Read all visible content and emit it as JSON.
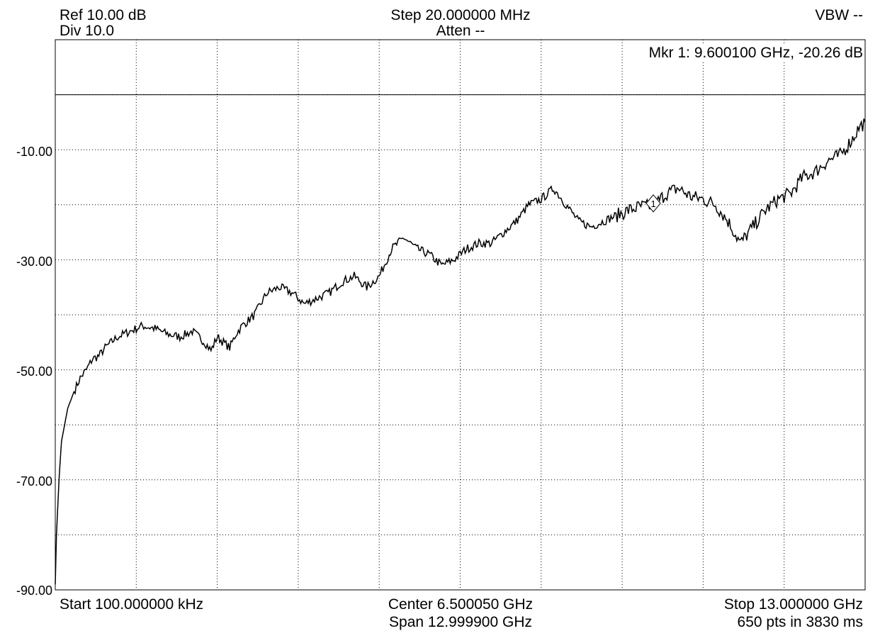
{
  "header": {
    "ref": "Ref 10.00 dB",
    "div": "Div 10.0",
    "step": "Step 20.000000 MHz",
    "atten": "Atten --",
    "vbw": "VBW --"
  },
  "marker": {
    "readout": "Mkr 1: 9.600100 GHz, -20.26 dB",
    "label": "1",
    "x_ghz": 9.6001,
    "y_db": -20.26
  },
  "footer": {
    "start": "Start 100.000000 kHz",
    "center": "Center 6.500050 GHz",
    "span": "Span 12.999900 GHz",
    "stop": "Stop 13.000000 GHz",
    "sweep": "650 pts in 3830 ms"
  },
  "colors": {
    "trace": "#000000",
    "grid": "#000000",
    "background": "#ffffff"
  },
  "chart_data": {
    "type": "line",
    "title": "",
    "xlabel": "",
    "ylabel": "",
    "xlim": [
      0.0001,
      13.0
    ],
    "ylim": [
      -90,
      10
    ],
    "y_ticks": [
      -10,
      -30,
      -50,
      -70,
      -90
    ],
    "y_tick_labels": [
      "-10.00",
      "-30.00",
      "-50.00",
      "-70.00",
      "-90.00"
    ],
    "reference_level": 0,
    "grid": true,
    "series": [
      {
        "x": [
          0.0001,
          0.02,
          0.06,
          0.1,
          0.15,
          0.2,
          0.3,
          0.4,
          0.5,
          0.6,
          0.7,
          0.8,
          0.9,
          1.0,
          1.2,
          1.4,
          1.6,
          1.8,
          2.0,
          2.2,
          2.4,
          2.5,
          2.6,
          2.7,
          2.8,
          2.9,
          3.0,
          3.2,
          3.4,
          3.6,
          3.8,
          4.0,
          4.2,
          4.4,
          4.6,
          4.8,
          5.0,
          5.2,
          5.4,
          5.6,
          5.8,
          6.0,
          6.2,
          6.4,
          6.6,
          6.8,
          7.0,
          7.2,
          7.4,
          7.6,
          7.8,
          8.0,
          8.2,
          8.4,
          8.6,
          8.8,
          9.0,
          9.2,
          9.4,
          9.6,
          9.8,
          10.0,
          10.2,
          10.4,
          10.6,
          10.8,
          11.0,
          11.2,
          11.4,
          11.6,
          11.8,
          12.0,
          12.2,
          12.4,
          12.6,
          12.8,
          12.9,
          13.0
        ],
        "y": [
          -89,
          -80,
          -70,
          -63,
          -60,
          -57,
          -54,
          -51.5,
          -50,
          -48,
          -47.5,
          -46,
          -45,
          -44,
          -43,
          -42,
          -42.5,
          -43.5,
          -44,
          -43,
          -45,
          -46.5,
          -44,
          -45,
          -46,
          -43.5,
          -42,
          -40,
          -36,
          -35,
          -36,
          -38,
          -37,
          -36,
          -34,
          -33,
          -35,
          -33,
          -28,
          -26,
          -28,
          -29,
          -31,
          -30,
          -28,
          -27,
          -27,
          -25,
          -23,
          -20,
          -19,
          -17,
          -20,
          -23,
          -24,
          -23,
          -22,
          -21,
          -20.3,
          -20.26,
          -18,
          -17,
          -18.5,
          -19,
          -20,
          -23,
          -27,
          -24,
          -21,
          -19,
          -18,
          -15,
          -14,
          -12,
          -11,
          -8,
          -6,
          -5
        ]
      }
    ]
  }
}
